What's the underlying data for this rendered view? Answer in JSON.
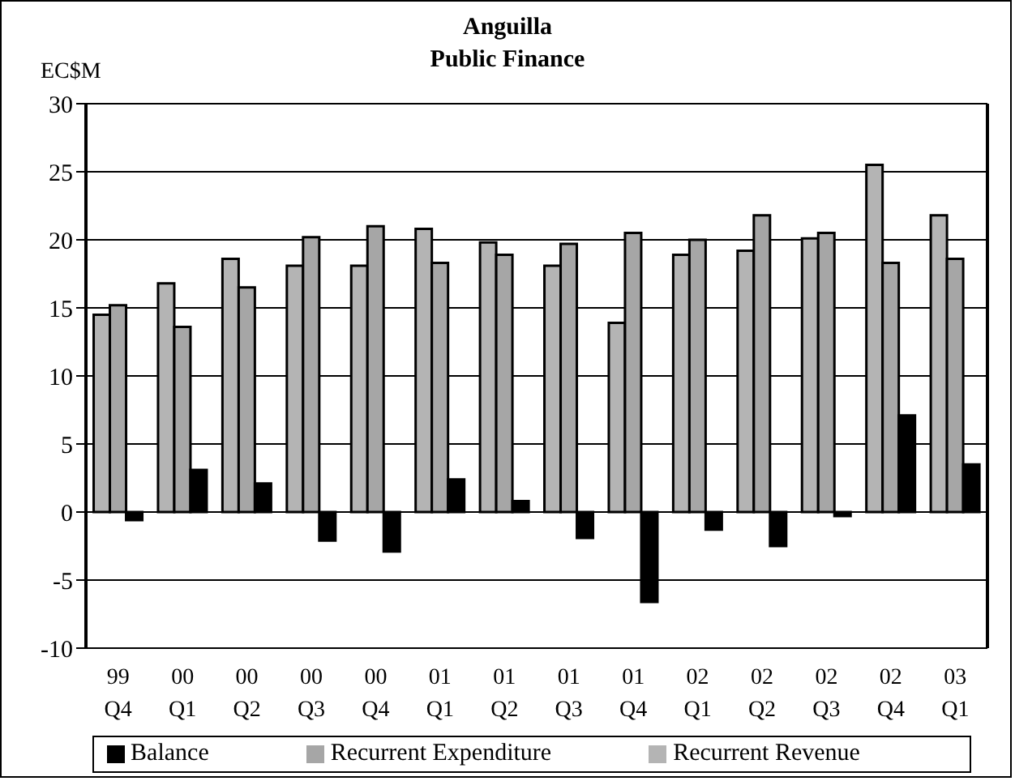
{
  "chart_data": {
    "type": "bar",
    "title": "Anguilla",
    "subtitle": "Public Finance",
    "ylabel": "EC$M",
    "categories": [
      "99\nQ4",
      "00\nQ1",
      "00\nQ2",
      "00\nQ3",
      "00\nQ4",
      "01\nQ1",
      "01\nQ2",
      "01\nQ3",
      "01\nQ4",
      "02\nQ1",
      "02\nQ2",
      "02\nQ3",
      "02\nQ4",
      "03\nQ1"
    ],
    "series": [
      {
        "name": "Recurrent Revenue",
        "color": "#b4b4b4",
        "values": [
          14.5,
          16.8,
          18.6,
          18.1,
          18.1,
          20.8,
          19.8,
          18.1,
          13.9,
          18.9,
          19.2,
          20.1,
          25.5,
          21.8
        ]
      },
      {
        "name": "Recurrent Expenditure",
        "color": "#a6a6a6",
        "values": [
          15.2,
          13.6,
          16.5,
          20.2,
          21.0,
          18.3,
          18.9,
          19.7,
          20.5,
          20.0,
          21.8,
          20.5,
          18.3,
          18.6
        ]
      },
      {
        "name": "Balance",
        "color": "#000000",
        "values": [
          -0.6,
          3.1,
          2.1,
          -2.1,
          -2.9,
          2.4,
          0.8,
          -1.9,
          -6.6,
          -1.3,
          -2.5,
          -0.3,
          7.1,
          3.5
        ]
      }
    ],
    "ylim": [
      -10,
      30
    ],
    "yticks": [
      -10,
      -5,
      0,
      5,
      10,
      15,
      20,
      25,
      30
    ],
    "grid": "y",
    "legend": "bottom"
  }
}
